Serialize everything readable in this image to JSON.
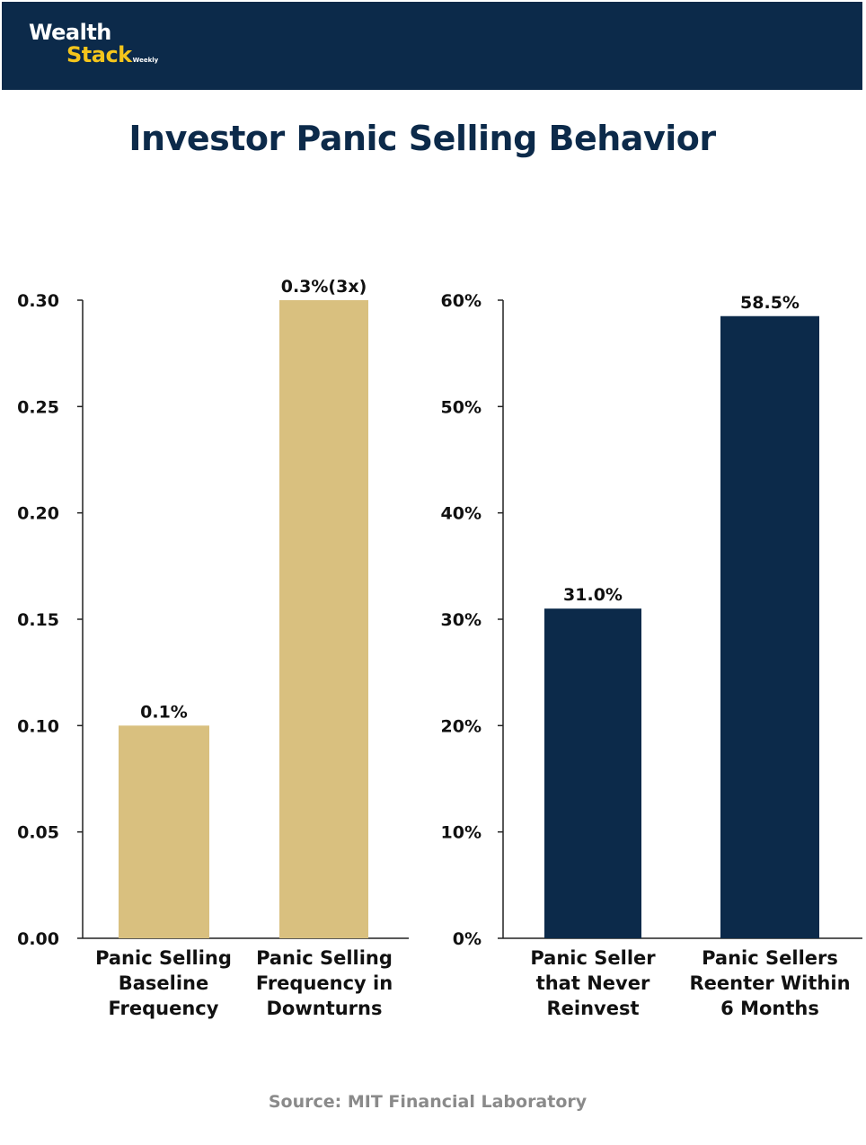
{
  "header": {
    "logo_line1": "Wealth",
    "logo_line2": "Stack",
    "logo_tagline": "Weekly"
  },
  "title": "Investor Panic Selling Behavior",
  "source": "Source: MIT Financial Laboratory",
  "colors": {
    "header_bg": "#0c2a4a",
    "logo_accent": "#f4c51c",
    "bar_left": "#d9c07f",
    "bar_right": "#0c2a4a",
    "title": "#0c2a4a"
  },
  "chart_data": [
    {
      "type": "bar",
      "title": "",
      "categories": [
        "Panic Selling Baseline Frequency",
        "Panic Selling Frequency in Downturns"
      ],
      "category_lines": [
        [
          "Panic Selling",
          "Baseline",
          "Frequency"
        ],
        [
          "Panic Selling",
          "Frequency in",
          "Downturns"
        ]
      ],
      "values": [
        0.1,
        0.3
      ],
      "data_labels": [
        "0.1%",
        "0.3%(3x)"
      ],
      "ylim": [
        0,
        0.3
      ],
      "yticks": [
        0.0,
        0.05,
        0.1,
        0.15,
        0.2,
        0.25,
        0.3
      ],
      "ytick_labels": [
        "0.00",
        "0.05",
        "0.10",
        "0.15",
        "0.20",
        "0.25",
        "0.30"
      ],
      "xlabel": "",
      "ylabel": "",
      "grid": false
    },
    {
      "type": "bar",
      "title": "",
      "categories": [
        "Panic Seller that Never Reinvest",
        "Panic Sellers Reenter Within 6 Months"
      ],
      "category_lines": [
        [
          "Panic Seller",
          "that Never",
          "Reinvest"
        ],
        [
          "Panic Sellers",
          "Reenter Within",
          "6 Months"
        ]
      ],
      "values": [
        31.0,
        58.5
      ],
      "data_labels": [
        "31.0%",
        "58.5%"
      ],
      "ylim": [
        0,
        60
      ],
      "yticks": [
        0,
        10,
        20,
        30,
        40,
        50,
        60
      ],
      "ytick_labels": [
        "0%",
        "10%",
        "20%",
        "30%",
        "40%",
        "50%",
        "60%"
      ],
      "xlabel": "",
      "ylabel": "",
      "grid": false
    }
  ]
}
